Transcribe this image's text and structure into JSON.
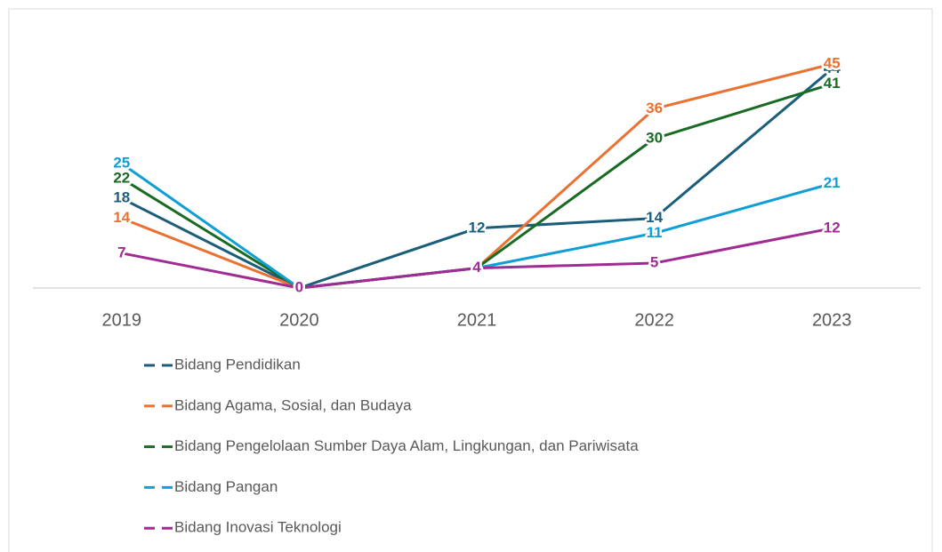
{
  "chart_data": {
    "type": "line",
    "categories": [
      "2019",
      "2020",
      "2021",
      "2022",
      "2023"
    ],
    "series": [
      {
        "name": "Bidang Pendidikan",
        "color": "#1b5e7b",
        "values": [
          18,
          0,
          12,
          14,
          44
        ]
      },
      {
        "name": "Bidang Agama, Sosial, dan Budaya",
        "color": "#e97132",
        "values": [
          14,
          0,
          4,
          36,
          45
        ]
      },
      {
        "name": "Bidang Pengelolaan Sumber Daya Alam, Lingkungan, dan Pariwisata",
        "color": "#196b24",
        "values": [
          22,
          0,
          4,
          30,
          41
        ]
      },
      {
        "name": "Bidang Pangan",
        "color": "#0f9ed5",
        "values": [
          25,
          0,
          4,
          11,
          21
        ]
      },
      {
        "name": "Bidang Inovasi Teknologi",
        "color": "#a02b93",
        "values": [
          7,
          0,
          4,
          5,
          12
        ]
      }
    ],
    "ylim": [
      0,
      50
    ],
    "legend": "bottom"
  }
}
